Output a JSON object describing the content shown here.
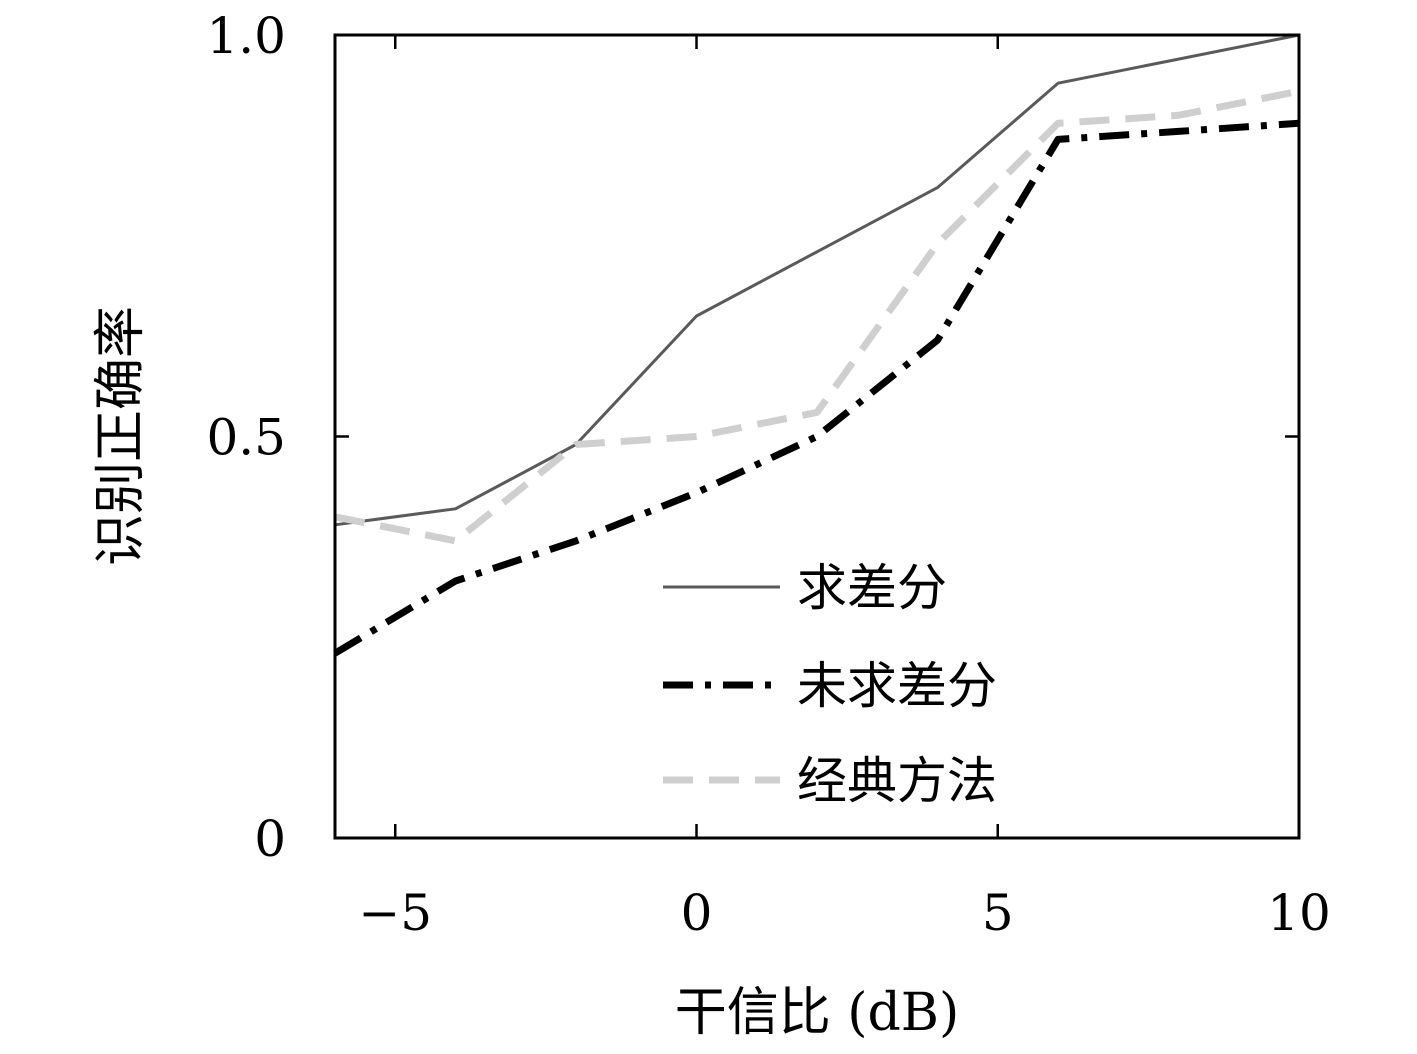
{
  "chart_data": {
    "type": "line",
    "xlabel": "干信比 (dB)",
    "ylabel": "识别正确率",
    "xlim": [
      -6,
      10
    ],
    "ylim": [
      0,
      1.0
    ],
    "x_ticks": [
      -5,
      0,
      5,
      10
    ],
    "x_tick_labels": [
      "−5",
      "0",
      "5",
      "10"
    ],
    "y_ticks": [
      0,
      0.5,
      1.0
    ],
    "y_tick_labels": [
      "0",
      "0.5",
      "1.0"
    ],
    "grid": false,
    "legend_position": "bottom-right",
    "series": [
      {
        "name": "求差分",
        "color": "#5a5a5a",
        "style": "solid",
        "x": [
          -6,
          -4,
          -2,
          0,
          2,
          4,
          6,
          8,
          10
        ],
        "y": [
          0.39,
          0.41,
          0.49,
          0.65,
          0.73,
          0.81,
          0.94,
          0.97,
          1.0
        ]
      },
      {
        "name": "未求差分",
        "color": "#000000",
        "style": "dashdot",
        "x": [
          -6,
          -4,
          -2,
          0,
          2,
          4,
          6,
          8,
          10
        ],
        "y": [
          0.23,
          0.32,
          0.37,
          0.43,
          0.5,
          0.62,
          0.87,
          0.88,
          0.89
        ]
      },
      {
        "name": "经典方法",
        "color": "#cfcfcf",
        "style": "dashed",
        "x": [
          -6,
          -4,
          -2,
          0,
          2,
          4,
          6,
          8,
          10
        ],
        "y": [
          0.4,
          0.37,
          0.49,
          0.5,
          0.53,
          0.74,
          0.89,
          0.9,
          0.93
        ]
      }
    ]
  }
}
